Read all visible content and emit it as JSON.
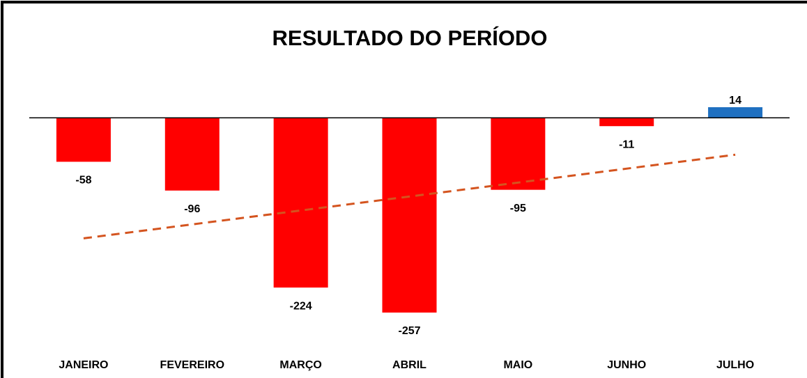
{
  "chart_data": {
    "type": "bar",
    "title": "RESULTADO DO PERÍODO",
    "categories": [
      "JANEIRO",
      "FEVEREIRO",
      "MARÇO",
      "ABRIL",
      "MAIO",
      "JUNHO",
      "JULHO"
    ],
    "values": [
      -58,
      -96,
      -224,
      -257,
      -95,
      -11,
      14
    ],
    "colors": [
      "#ff0000",
      "#ff0000",
      "#ff0000",
      "#ff0000",
      "#ff0000",
      "#ff0000",
      "#1f70c1"
    ],
    "trendline": true,
    "trendline_color": "#d4541f"
  }
}
